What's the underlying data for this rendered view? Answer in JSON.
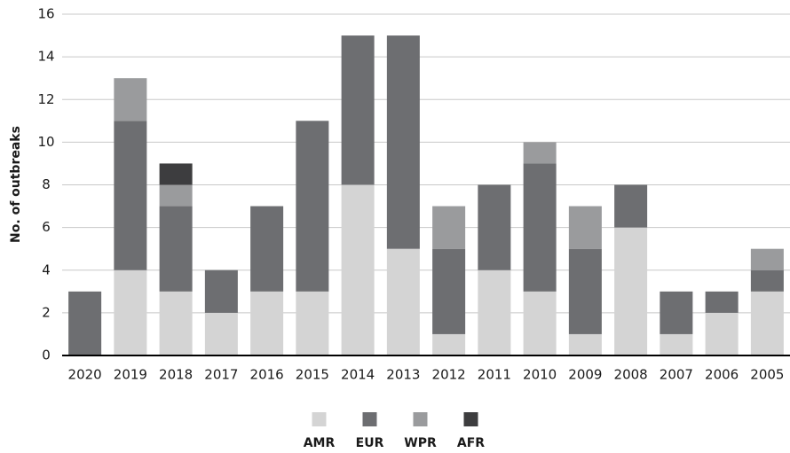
{
  "chart_data": {
    "type": "stacked_bar",
    "y_label": "No. of outbreaks",
    "categories": [
      "2020",
      "2019",
      "2018",
      "2017",
      "2016",
      "2015",
      "2014",
      "2013",
      "2012",
      "2011",
      "2010",
      "2009",
      "2008",
      "2007",
      "2006",
      "2005"
    ],
    "series": [
      {
        "name": "AMR",
        "color": "#d4d4d4",
        "values": [
          0,
          4,
          3,
          2,
          3,
          3,
          8,
          5,
          1,
          4,
          3,
          1,
          6,
          1,
          2,
          3
        ]
      },
      {
        "name": "EUR",
        "color": "#6d6e71",
        "values": [
          3,
          7,
          4,
          2,
          4,
          8,
          7,
          10,
          4,
          4,
          6,
          4,
          2,
          2,
          1,
          1
        ]
      },
      {
        "name": "WPR",
        "color": "#9a9b9d",
        "values": [
          0,
          2,
          1,
          0,
          0,
          0,
          0,
          0,
          2,
          0,
          1,
          2,
          0,
          0,
          0,
          1
        ]
      },
      {
        "name": "AFR",
        "color": "#3d3d3f",
        "values": [
          0,
          0,
          1,
          0,
          0,
          0,
          0,
          0,
          0,
          0,
          0,
          0,
          0,
          0,
          0,
          0
        ]
      }
    ],
    "ylim": [
      0,
      16
    ],
    "yticks": [
      0,
      2,
      4,
      6,
      8,
      10,
      12,
      14,
      16
    ],
    "grid": true,
    "legend": "bottom"
  }
}
